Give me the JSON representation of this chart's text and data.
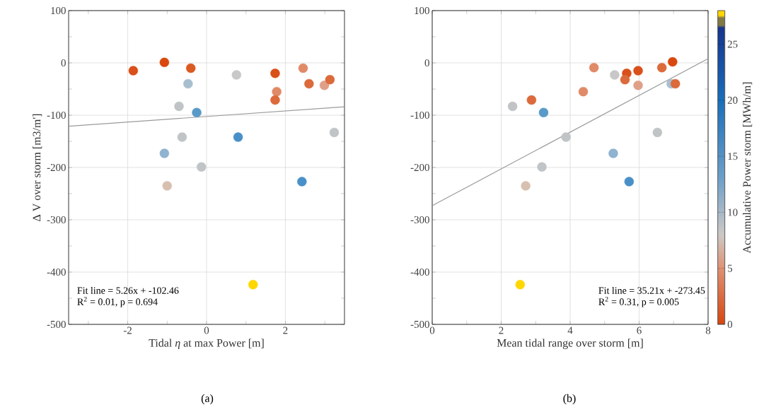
{
  "chart_data": [
    {
      "type": "scatter",
      "xlabel": "Tidal *η* at max Power [m]",
      "ylabel": "Δ V over storm [m3/m']",
      "xlim": [
        -3.5,
        3.5
      ],
      "ylim": [
        -500,
        100
      ],
      "xticks": [
        {
          "value": -3,
          "label": null
        },
        -2,
        {
          "value": -1,
          "label": null
        },
        0,
        {
          "value": 1,
          "label": null
        },
        2,
        {
          "value": 3,
          "label": null
        }
      ],
      "yticks": [
        -500,
        {
          "value": -450,
          "label": null
        },
        -400,
        {
          "value": -350,
          "label": null
        },
        -300,
        {
          "value": -250,
          "label": null
        },
        -200,
        {
          "value": -150,
          "label": null
        },
        -100,
        {
          "value": -50,
          "label": null
        },
        0,
        {
          "value": 50,
          "label": null
        },
        100
      ],
      "grid": true,
      "line_style": "solid",
      "series": [
        {
          "marker": "circle",
          "x": [
            -1.86,
            -1.07,
            -0.4,
            0.76,
            1.74,
            2.45,
            -0.47,
            2.6,
            2.99,
            3.13,
            1.78,
            1.74,
            -0.7,
            -0.25,
            -0.62,
            0.8,
            3.24,
            -1.07,
            -0.13,
            2.42,
            -1.0,
            1.18
          ],
          "values": [
            -15,
            1,
            -10,
            -23,
            -20,
            -10,
            -40,
            -40,
            -43,
            -32,
            -55,
            -71,
            -83,
            -95,
            -142,
            -142,
            -133,
            -173,
            -199,
            -227,
            -235,
            -424
          ],
          "colors": [
            "#d9501a",
            "#d9480f",
            "#da5a22",
            "#c8c8c8",
            "#d9501a",
            "#e08a68",
            "#a8bfd0",
            "#dc6a3a",
            "#e0a088",
            "#dc6a3a",
            "#e08a68",
            "#dc6a3a",
            "#c0c4c6",
            "#5a9ac8",
            "#c0c4c6",
            "#4a90c8",
            "#c0c4c6",
            "#8fb3d0",
            "#c0c4c6",
            "#4a90c8",
            "#d8c0b0",
            "#ffd700"
          ]
        },
        {
          "type": "line",
          "marker": "none",
          "x": [
            -3.5,
            3.5
          ],
          "values": [
            -121,
            -84
          ],
          "color": "#9a9a9a"
        }
      ],
      "annotations": [
        "Fit line = 5.26x + -102.46",
        "R$^{2}$ = 0.01, p = 0.694",
        "(a)"
      ]
    },
    {
      "type": "scatter",
      "xlabel": "Mean tidal range over storm [m]",
      "clabel": "Accumulative Power storm [MWh/m]",
      "xlim": [
        0,
        8
      ],
      "ylim": [
        -500,
        100
      ],
      "xticks": [
        0,
        {
          "value": 1,
          "label": null
        },
        2,
        {
          "value": 3,
          "label": null
        },
        4,
        {
          "value": 5,
          "label": null
        },
        6,
        {
          "value": 7,
          "label": null
        },
        8
      ],
      "yticks": [
        -500,
        {
          "value": -450,
          "label": null
        },
        -400,
        {
          "value": -350,
          "label": null
        },
        -300,
        {
          "value": -250,
          "label": null
        },
        -200,
        {
          "value": -150,
          "label": null
        },
        -100,
        {
          "value": -50,
          "label": null
        },
        0,
        {
          "value": 50,
          "label": null
        },
        100
      ],
      "grid": true,
      "line_style": "solid",
      "clim": [
        0,
        28
      ],
      "cticks": [
        0,
        5,
        10,
        15,
        20,
        25
      ],
      "series": [
        {
          "marker": "circle",
          "x": [
            4.69,
            5.29,
            5.64,
            5.59,
            5.97,
            5.97,
            6.66,
            6.97,
            6.93,
            7.05,
            4.38,
            2.88,
            2.33,
            3.23,
            3.88,
            6.53,
            5.25,
            3.18,
            5.71,
            2.71,
            2.55
          ],
          "values": [
            -9,
            -23,
            -20,
            -32,
            -15,
            -43,
            -9,
            2,
            -40,
            -40,
            -55,
            -71,
            -83,
            -95,
            -142,
            -133,
            -173,
            -199,
            -227,
            -235,
            -424
          ],
          "colors": [
            "#e08a68",
            "#c8c8c8",
            "#d9501a",
            "#dc6a3a",
            "#d9501a",
            "#e0a088",
            "#dc6a3a",
            "#d9480f",
            "#a8bfd0",
            "#dc6a3a",
            "#e08a68",
            "#dc6a3a",
            "#c0c4c6",
            "#5a9ac8",
            "#c0c4c6",
            "#c0c4c6",
            "#8fb3d0",
            "#c0c4c6",
            "#4a90c8",
            "#d8c0b0",
            "#ffd700"
          ]
        },
        {
          "type": "line",
          "marker": "none",
          "x": [
            0,
            8
          ],
          "values": [
            -273,
            8
          ],
          "color": "#9a9a9a"
        }
      ],
      "annotations": [
        "Fit line = 35.21x + -273.45",
        "R$^{2}$ = 0.31, p = 0.005",
        "(b)"
      ]
    }
  ]
}
